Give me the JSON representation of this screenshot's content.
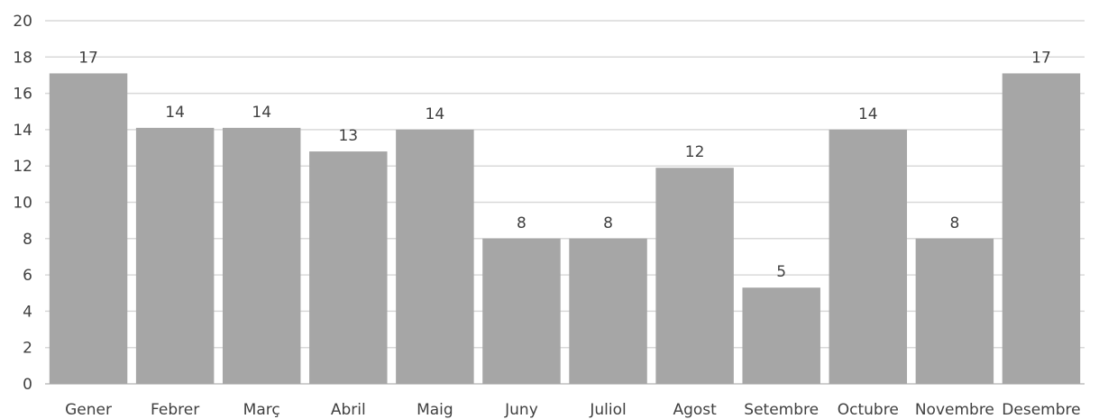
{
  "chart_data": {
    "type": "bar",
    "title": "",
    "xlabel": "",
    "ylabel": "",
    "categories": [
      "Gener",
      "Febrer",
      "Març",
      "Abril",
      "Maig",
      "Juny",
      "Juliol",
      "Agost",
      "Setembre",
      "Octubre",
      "Novembre",
      "Desembre"
    ],
    "values": [
      17.1,
      14.1,
      14.1,
      12.8,
      14.0,
      8.0,
      8.0,
      11.9,
      5.3,
      14.0,
      8.0,
      17.1
    ],
    "data_labels": [
      "17",
      "14",
      "14",
      "13",
      "14",
      "8",
      "8",
      "12",
      "5",
      "14",
      "8",
      "17"
    ],
    "ylim": [
      0,
      20
    ],
    "y_ticks": [
      "0",
      "2",
      "4",
      "6",
      "8",
      "10",
      "12",
      "14",
      "16",
      "18",
      "20"
    ],
    "y_tick_values": [
      0,
      2,
      4,
      6,
      8,
      10,
      12,
      14,
      16,
      18,
      20
    ],
    "grid": true,
    "legend": "none",
    "bar_color": "#a6a6a6",
    "grid_color": "#d9d9d9",
    "text_color": "#404040"
  }
}
